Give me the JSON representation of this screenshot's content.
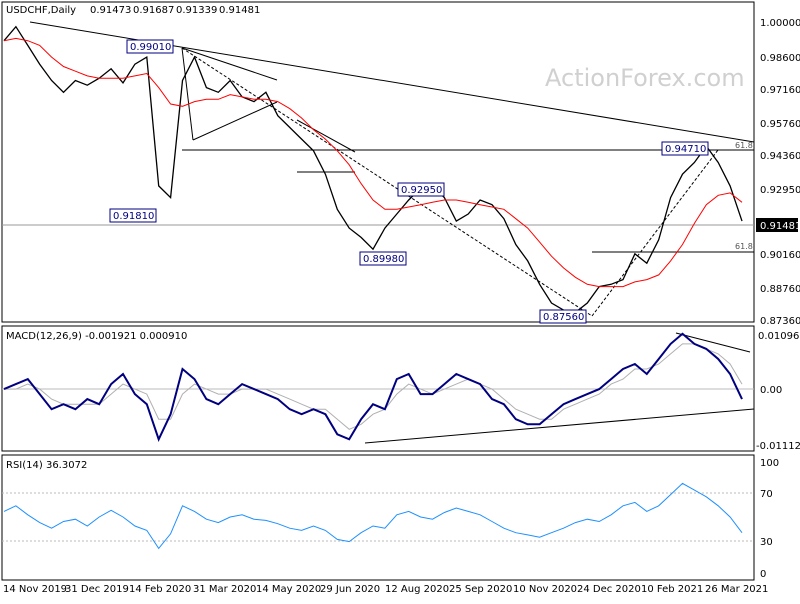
{
  "chart_data": [
    {
      "type": "line",
      "panel": "price",
      "title": "USDCHF,Daily",
      "ohlc": [
        "0.91473",
        "0.91687",
        "0.91339",
        "0.91481"
      ],
      "watermark": "ActionForex.com",
      "ylim": [
        0.8736,
        1.0
      ],
      "yticks": [
        "1.00000",
        "0.98600",
        "0.97160",
        "0.95760",
        "0.94360",
        "0.92950",
        "0.91481",
        "0.90160",
        "0.88760",
        "0.87360"
      ],
      "current_price_label": "0.91481",
      "series": [
        {
          "name": "",
          "color": "#000000",
          "values": [
            0.992,
            0.998,
            0.99,
            0.982,
            0.975,
            0.97,
            0.975,
            0.973,
            0.976,
            0.98,
            0.974,
            0.982,
            0.985,
            0.93,
            0.925,
            0.975,
            0.985,
            0.972,
            0.97,
            0.975,
            0.968,
            0.966,
            0.97,
            0.96,
            0.955,
            0.95,
            0.945,
            0.935,
            0.92,
            0.912,
            0.908,
            0.903,
            0.912,
            0.918,
            0.924,
            0.929,
            0.93,
            0.925,
            0.915,
            0.918,
            0.924,
            0.922,
            0.916,
            0.905,
            0.898,
            0.888,
            0.88,
            0.877,
            0.876,
            0.88,
            0.887,
            0.888,
            0.89,
            0.901,
            0.897,
            0.907,
            0.925,
            0.935,
            0.94,
            0.947,
            0.94,
            0.93,
            0.915
          ]
        },
        {
          "name": "",
          "color": "#ff0000",
          "values": [
            0.992,
            0.993,
            0.992,
            0.99,
            0.985,
            0.981,
            0.979,
            0.977,
            0.976,
            0.976,
            0.976,
            0.977,
            0.978,
            0.972,
            0.965,
            0.964,
            0.966,
            0.967,
            0.967,
            0.969,
            0.968,
            0.967,
            0.967,
            0.966,
            0.963,
            0.959,
            0.954,
            0.95,
            0.945,
            0.939,
            0.931,
            0.924,
            0.92,
            0.92,
            0.921,
            0.922,
            0.923,
            0.924,
            0.924,
            0.923,
            0.922,
            0.921,
            0.92,
            0.916,
            0.912,
            0.906,
            0.9,
            0.895,
            0.891,
            0.888,
            0.887,
            0.887,
            0.887,
            0.889,
            0.89,
            0.892,
            0.898,
            0.905,
            0.914,
            0.922,
            0.926,
            0.927,
            0.923
          ]
        }
      ],
      "annotations": [
        "0.99010",
        "0.91810",
        "0.92950",
        "0.89980",
        "0.87560",
        "0.94710"
      ],
      "fib_labels": [
        "61.8",
        "61.8"
      ]
    },
    {
      "type": "line",
      "panel": "macd",
      "title": "MACD(12,26,9) -0.001921 0.000910",
      "yticks": [
        "0.010967",
        "0.00",
        "-0.011127"
      ],
      "ylim": [
        -0.011127,
        0.010967
      ],
      "series": [
        {
          "name": "",
          "color": "#000080",
          "values": [
            0.0,
            0.001,
            0.002,
            -0.001,
            -0.004,
            -0.003,
            -0.004,
            -0.002,
            -0.003,
            0.001,
            0.003,
            -0.001,
            -0.003,
            -0.01,
            -0.005,
            0.004,
            0.002,
            -0.002,
            -0.003,
            -0.001,
            0.001,
            0.0,
            -0.001,
            -0.002,
            -0.004,
            -0.005,
            -0.004,
            -0.005,
            -0.009,
            -0.01,
            -0.006,
            -0.003,
            -0.004,
            0.002,
            0.003,
            -0.001,
            -0.001,
            0.001,
            0.003,
            0.002,
            0.001,
            -0.002,
            -0.003,
            -0.006,
            -0.007,
            -0.007,
            -0.005,
            -0.003,
            -0.002,
            -0.001,
            0.0,
            0.002,
            0.004,
            0.005,
            0.003,
            0.006,
            0.009,
            0.011,
            0.009,
            0.008,
            0.006,
            0.003,
            -0.002
          ]
        },
        {
          "name": "",
          "color": "#b0b0b0",
          "values": [
            0.0,
            0.0,
            0.001,
            0.0,
            -0.002,
            -0.003,
            -0.003,
            -0.003,
            -0.003,
            -0.001,
            0.001,
            0.0,
            -0.001,
            -0.006,
            -0.006,
            -0.001,
            0.001,
            0.0,
            -0.001,
            -0.001,
            0.0,
            0.0,
            0.0,
            -0.001,
            -0.002,
            -0.003,
            -0.004,
            -0.004,
            -0.006,
            -0.008,
            -0.007,
            -0.005,
            -0.004,
            -0.001,
            0.001,
            0.0,
            -0.001,
            0.0,
            0.001,
            0.002,
            0.001,
            0.0,
            -0.002,
            -0.004,
            -0.005,
            -0.006,
            -0.006,
            -0.004,
            -0.003,
            -0.002,
            -0.001,
            0.001,
            0.002,
            0.004,
            0.004,
            0.005,
            0.007,
            0.009,
            0.009,
            0.008,
            0.007,
            0.005,
            0.001
          ]
        }
      ]
    },
    {
      "type": "line",
      "panel": "rsi",
      "title": "RSI(14) 36.3072",
      "yticks": [
        "100",
        "70",
        "30",
        "0"
      ],
      "ylim": [
        0,
        100
      ],
      "series": [
        {
          "name": "",
          "color": "#1e90ff",
          "values": [
            55,
            60,
            52,
            45,
            40,
            46,
            48,
            42,
            50,
            56,
            50,
            42,
            38,
            22,
            35,
            60,
            55,
            48,
            45,
            50,
            52,
            48,
            47,
            44,
            40,
            38,
            42,
            38,
            30,
            28,
            36,
            42,
            40,
            52,
            55,
            50,
            48,
            54,
            58,
            55,
            52,
            46,
            40,
            36,
            34,
            32,
            36,
            40,
            45,
            48,
            46,
            52,
            60,
            63,
            55,
            60,
            70,
            80,
            74,
            68,
            60,
            50,
            36
          ]
        }
      ]
    }
  ],
  "x_axis": {
    "tick_labels": [
      "14 Nov 2019",
      "31 Dec 2019",
      "14 Feb 2020",
      "31 Mar 2020",
      "14 May 2020",
      "29 Jun 2020",
      "12 Aug 2020",
      "25 Sep 2020",
      "10 Nov 2020",
      "24 Dec 2020",
      "10 Feb 2021",
      "26 Mar 2021"
    ]
  }
}
